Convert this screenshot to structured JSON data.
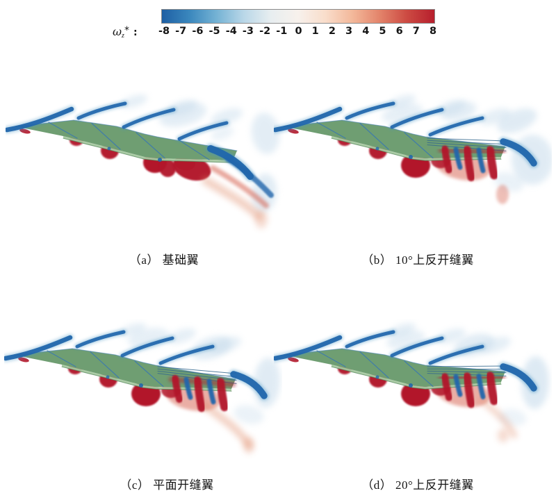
{
  "figure": {
    "colorbar": {
      "label": {
        "symbol": "ω",
        "subscript": "z",
        "superscript": "*",
        "separator": ":"
      },
      "ticks": [
        "-8",
        "-7",
        "-6",
        "-5",
        "-4",
        "-3",
        "-2",
        "-1",
        "0",
        "1",
        "2",
        "3",
        "4",
        "5",
        "6",
        "7",
        "8"
      ],
      "range": [
        -8,
        8
      ],
      "gradient": [
        "#1e5fa4",
        "#3a87bd",
        "#74b2d4",
        "#b9d7e8",
        "#e8eef0",
        "#f7f1ec",
        "#f9ddcb",
        "#f3b89a",
        "#e3836a",
        "#cc4a42",
        "#b71f2d"
      ]
    },
    "panels": [
      {
        "id": "a",
        "caption": "（a） 基础翼",
        "variant": "base",
        "dihedral_deg": 0
      },
      {
        "id": "b",
        "caption": "（b） 10°上反开缝翼",
        "variant": "slotted",
        "dihedral_deg": 10
      },
      {
        "id": "c",
        "caption": "（c） 平面开缝翼",
        "variant": "slotted",
        "dihedral_deg": 0
      },
      {
        "id": "d",
        "caption": "（d） 20°上反开缝翼",
        "variant": "slotted",
        "dihedral_deg": 20
      }
    ],
    "palette": {
      "background": "#ffffff",
      "wing_green": "#6f9e72",
      "wing_edge_light": "#a6c9a1",
      "vortex_red_dark": "#b2182b",
      "vortex_red_mid": "#d6604d",
      "vortex_orange_diffuse": "#e08a68",
      "vortex_blue_dark": "#2166ac",
      "vortex_blue_mid": "#4393c3",
      "vortex_blue_pale": "#c3d9ea",
      "division_line": "#3c79ae",
      "text": "#151515"
    }
  }
}
